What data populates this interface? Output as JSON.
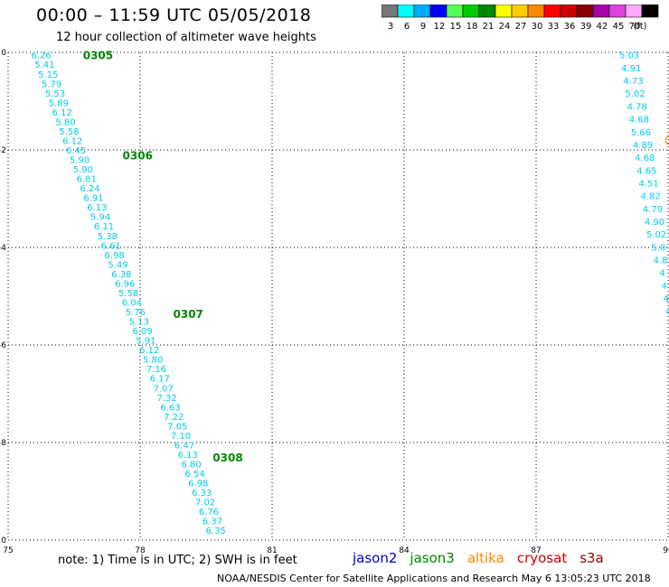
{
  "header": {
    "title": "00:00 – 11:59 UTC 05/05/2018",
    "subtitle": "12 hour collection of altimeter wave heights"
  },
  "colorbar": {
    "unit": "(ft)",
    "bins": [
      {
        "label": "3",
        "color": "#777777"
      },
      {
        "label": "6",
        "color": "#00ffff"
      },
      {
        "label": "9",
        "color": "#00aaff"
      },
      {
        "label": "12",
        "color": "#0000ff"
      },
      {
        "label": "15",
        "color": "#55ff55"
      },
      {
        "label": "18",
        "color": "#00cc00"
      },
      {
        "label": "21",
        "color": "#008800"
      },
      {
        "label": "24",
        "color": "#ffff00"
      },
      {
        "label": "27",
        "color": "#ffcc00"
      },
      {
        "label": "30",
        "color": "#ff8800"
      },
      {
        "label": "33",
        "color": "#ff0000"
      },
      {
        "label": "36",
        "color": "#cc0000"
      },
      {
        "label": "39",
        "color": "#880000"
      },
      {
        "label": "42",
        "color": "#aa00aa"
      },
      {
        "label": "45",
        "color": "#dd44dd"
      },
      {
        "label": "70",
        "color": "#ffaaff"
      },
      {
        "label": "",
        "color": "#000000"
      }
    ]
  },
  "chart_data": {
    "type": "scatter",
    "x_ticks": [
      "75",
      "78",
      "81",
      "84",
      "87",
      "90"
    ],
    "y_ticks": [
      "0",
      "-2",
      "-4",
      "-6",
      "-8",
      "-10"
    ],
    "xlim": [
      75,
      90
    ],
    "ylim": [
      -10,
      0
    ],
    "grid": true,
    "label_color": "#00ccee",
    "series": [
      {
        "x_start": 75.75,
        "y_start": -0.05,
        "x_end": 79.72,
        "y_end": -9.8,
        "values": [
          "6.26",
          "5.41",
          "5.15",
          "5.79",
          "5.53",
          "5.89",
          "6.12",
          "5.80",
          "5.58",
          "6.12",
          "6.45",
          "5.90",
          "5.90",
          "6.81",
          "6.24",
          "6.91",
          "6.13",
          "5.94",
          "6.11",
          "5.38",
          "6.61",
          "6.98",
          "5.49",
          "6.38",
          "6.96",
          "5.58",
          "6.04",
          "5.76",
          "5.13",
          "6.09",
          "5.91",
          "6.12",
          "5.80",
          "7.16",
          "6.17",
          "7.07",
          "7.32",
          "6.63",
          "7.22",
          "7.05",
          "7.10",
          "6.47",
          "6.13",
          "6.80",
          "6.54",
          "6.98",
          "6.33",
          "7.02",
          "6.76",
          "6.37",
          "6.35"
        ]
      },
      {
        "x_start": 89.12,
        "y_start": -0.05,
        "x_end": 90.0,
        "y_end": -5.3,
        "values": [
          "5.03",
          "4.91",
          "4.73",
          "5.02",
          "4.78",
          "4.68",
          "5.66",
          "4.89",
          "4.68",
          "4.65",
          "4.51",
          "4.82",
          "4.79",
          "4.90",
          "5.02",
          "5.0",
          "4.8",
          "4",
          "4",
          "4",
          "4"
        ]
      }
    ],
    "time_labels": [
      {
        "label": "0305",
        "x": 76.7,
        "y": -0.05
      },
      {
        "label": "0306",
        "x": 77.6,
        "y": -2.1
      },
      {
        "label": "0307",
        "x": 78.75,
        "y": -5.35
      },
      {
        "label": "0308",
        "x": 79.65,
        "y": -8.3
      }
    ],
    "edge_marks": [
      {
        "label": "0",
        "x": 90.0,
        "y": -1.8,
        "color": "#ff8800"
      }
    ]
  },
  "footer": {
    "note": "note:  1) Time is in UTC;  2) SWH is in feet",
    "credit": "NOAA/NESDIS Center for Satellite Applications and Research    May  6 13:05:23 UTC 2018",
    "satellites": [
      {
        "label": "jason2",
        "color": "#0000cc"
      },
      {
        "label": "jason3",
        "color": "#008800"
      },
      {
        "label": "altika",
        "color": "#ff8800"
      },
      {
        "label": "cryosat",
        "color": "#cc0000"
      },
      {
        "label": "s3a",
        "color": "#880000"
      }
    ]
  }
}
